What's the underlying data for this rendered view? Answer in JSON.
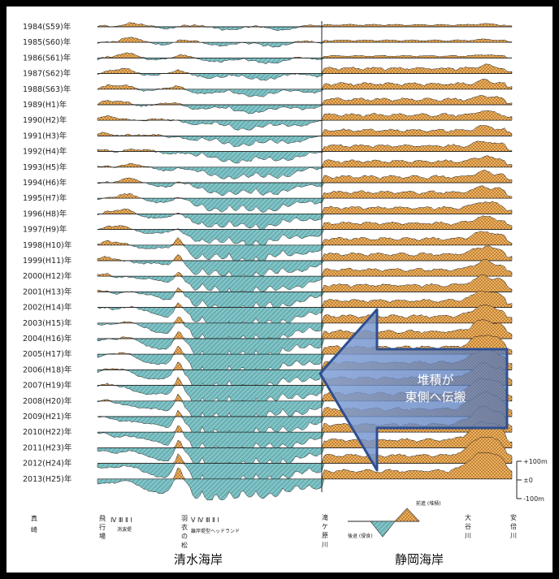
{
  "chart_data": {
    "type": "area",
    "title": "",
    "years": [
      "1984(S59)年",
      "1985(S60)年",
      "1986(S61)年",
      "1987(S62)年",
      "1988(S63)年",
      "1989(H1)年",
      "1990(H2)年",
      "1991(H3)年",
      "1992(H4)年",
      "1993(H5)年",
      "1994(H6)年",
      "1995(H7)年",
      "1996(H8)年",
      "1997(H9)年",
      "1998(H10)年",
      "1999(H11)年",
      "2000(H12)年",
      "2001(H13)年",
      "2002(H14)年",
      "2003(H15)年",
      "2004(H16)年",
      "2005(H17)年",
      "2006(H18)年",
      "2007(H19)年",
      "2008(H20)年",
      "2009(H21)年",
      "2010(H22)年",
      "2011(H23)年",
      "2012(H24)年",
      "2013(H25)年"
    ],
    "scale": {
      "plus": "+100m",
      "zero": "±0",
      "minus": "-100m"
    },
    "x_labels": {
      "masaki": "真崎",
      "hikojo": "飛行場",
      "groin_roman": "Ⅳ Ⅲ Ⅱ Ⅰ",
      "groin_text": "消波堤",
      "hagoromo": "羽衣の松",
      "headland_roman": "Ⅴ Ⅳ Ⅲ Ⅱ Ⅰ",
      "headland_text": "離岸堤型ヘッドランド",
      "takigahara": "滝ケ原川",
      "ooya": "大谷川",
      "abe": "安倍川"
    },
    "legend": {
      "accretion": "前進 (堆積)",
      "erosion": "後退 (侵食)"
    },
    "coast_labels": {
      "shimizu": "清水海岸",
      "shizuoka": "静岡海岸"
    },
    "annotation": {
      "line1": "堆積が",
      "line2": "東側へ伝搬"
    },
    "colors": {
      "accretion": "#f2b15c",
      "erosion": "#7fc3c6",
      "arrow": "#4a72b8"
    }
  }
}
